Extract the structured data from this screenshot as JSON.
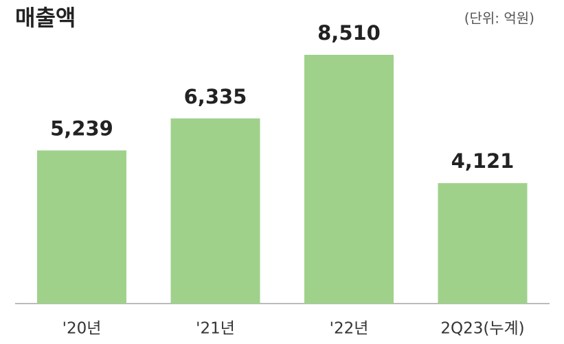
{
  "chart_data": {
    "type": "bar",
    "title": "매출액",
    "subtitle": "(단위: 억원)",
    "categories": [
      "'20년",
      "'21년",
      "'22년",
      "2Q23(누계)"
    ],
    "values": [
      5239,
      6335,
      8510,
      4121
    ],
    "value_labels": [
      "5,239",
      "6,335",
      "8,510",
      "4,121"
    ],
    "color": "#9fd18b"
  }
}
